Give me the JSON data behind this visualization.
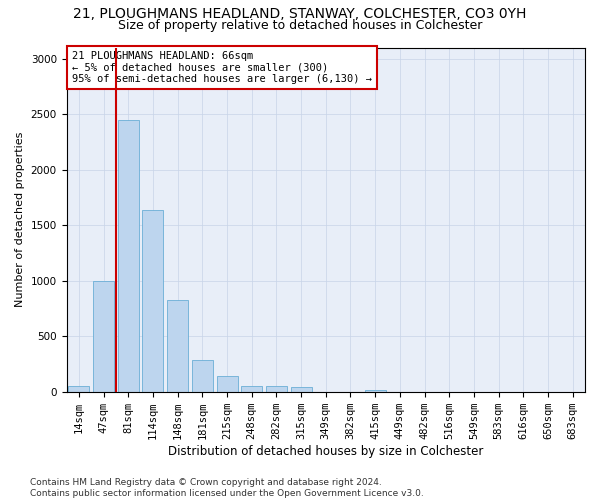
{
  "title1": "21, PLOUGHMANS HEADLAND, STANWAY, COLCHESTER, CO3 0YH",
  "title2": "Size of property relative to detached houses in Colchester",
  "xlabel": "Distribution of detached houses by size in Colchester",
  "ylabel": "Number of detached properties",
  "categories": [
    "14sqm",
    "47sqm",
    "81sqm",
    "114sqm",
    "148sqm",
    "181sqm",
    "215sqm",
    "248sqm",
    "282sqm",
    "315sqm",
    "349sqm",
    "382sqm",
    "415sqm",
    "449sqm",
    "482sqm",
    "516sqm",
    "549sqm",
    "583sqm",
    "616sqm",
    "650sqm",
    "683sqm"
  ],
  "values": [
    55,
    1000,
    2450,
    1640,
    830,
    290,
    140,
    50,
    50,
    40,
    0,
    0,
    20,
    0,
    0,
    0,
    0,
    0,
    0,
    0,
    0
  ],
  "bar_color": "#bdd5ee",
  "bar_edge_color": "#6aaed6",
  "marker_color": "#cc0000",
  "annotation_text": "21 PLOUGHMANS HEADLAND: 66sqm\n← 5% of detached houses are smaller (300)\n95% of semi-detached houses are larger (6,130) →",
  "annotation_box_color": "#ffffff",
  "annotation_box_edge": "#cc0000",
  "ylim": [
    0,
    3100
  ],
  "yticks": [
    0,
    500,
    1000,
    1500,
    2000,
    2500,
    3000
  ],
  "bg_color": "#e8eef8",
  "footer": "Contains HM Land Registry data © Crown copyright and database right 2024.\nContains public sector information licensed under the Open Government Licence v3.0.",
  "title1_fontsize": 10,
  "title2_fontsize": 9,
  "xlabel_fontsize": 8.5,
  "ylabel_fontsize": 8,
  "tick_fontsize": 7.5,
  "annotation_fontsize": 7.5,
  "footer_fontsize": 6.5
}
